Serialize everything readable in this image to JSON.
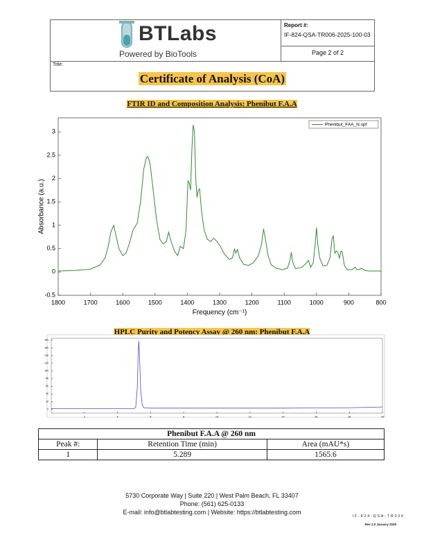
{
  "header": {
    "logo": "BTLabs",
    "tagline": "Powered by BioTools",
    "report_label": "Report #:",
    "report_number": "IF-824-QSA-TR006-2025-100-03",
    "page": "Page 2 of 2",
    "title_label": "Title:",
    "title": "Certificate of Analysis (CoA)"
  },
  "sections": [
    "FTIR ID and Composition Analysis: Phenibut F.A.A",
    "HPLC Purity and Potency Assay @ 260 nm: Phenibut F.A.A"
  ],
  "chart_data": [
    {
      "type": "line",
      "xlabel": "Frequency (cm⁻¹)",
      "ylabel": "Absorbance (a.u.)",
      "x": [
        1800,
        1750,
        1700,
        1670,
        1655,
        1645,
        1637,
        1628,
        1620,
        1612,
        1600,
        1590,
        1580,
        1568,
        1555,
        1545,
        1535,
        1527,
        1522,
        1515,
        1505,
        1495,
        1485,
        1475,
        1465,
        1458,
        1450,
        1440,
        1430,
        1422,
        1412,
        1404,
        1398,
        1394,
        1390,
        1386,
        1382,
        1378,
        1374,
        1370,
        1366,
        1362,
        1356,
        1348,
        1338,
        1328,
        1318,
        1308,
        1298,
        1285,
        1270,
        1260,
        1254,
        1250,
        1245,
        1238,
        1225,
        1210,
        1195,
        1180,
        1170,
        1164,
        1158,
        1150,
        1140,
        1125,
        1105,
        1090,
        1082,
        1078,
        1073,
        1065,
        1045,
        1030,
        1025,
        1018,
        1010,
        1004,
        1000,
        996,
        990,
        980,
        968,
        958,
        952,
        948,
        943,
        938,
        934,
        929,
        924,
        920,
        914,
        905,
        890,
        880,
        875,
        868,
        860,
        850,
        835,
        800
      ],
      "series": [
        {
          "name": "Phenibut_FAA_N.spf",
          "color": "#2e8b2e",
          "values": [
            0.02,
            0.03,
            0.06,
            0.15,
            0.3,
            0.55,
            0.85,
            1.0,
            0.75,
            0.5,
            0.35,
            0.4,
            0.6,
            0.9,
            1.05,
            1.5,
            2.2,
            2.45,
            2.47,
            2.3,
            1.7,
            1.1,
            0.7,
            0.6,
            0.65,
            0.85,
            0.65,
            0.45,
            0.35,
            0.55,
            0.5,
            0.9,
            1.95,
            1.9,
            1.75,
            2.6,
            3.15,
            3.0,
            2.0,
            1.6,
            1.75,
            1.78,
            1.3,
            0.9,
            0.7,
            0.65,
            0.72,
            0.65,
            0.55,
            0.38,
            0.27,
            0.3,
            0.5,
            0.4,
            0.48,
            0.3,
            0.16,
            0.14,
            0.2,
            0.35,
            0.6,
            0.92,
            0.7,
            0.35,
            0.15,
            0.08,
            0.05,
            0.08,
            0.25,
            0.42,
            0.2,
            0.07,
            0.1,
            0.2,
            0.25,
            0.1,
            0.2,
            0.6,
            0.95,
            0.6,
            0.3,
            0.13,
            0.14,
            0.3,
            0.7,
            0.78,
            0.4,
            0.45,
            0.42,
            0.3,
            0.45,
            0.42,
            0.15,
            0.05,
            0.05,
            0.1,
            0.05,
            0.05,
            0.08,
            0.03,
            0.02,
            0.02
          ]
        }
      ],
      "xlim": [
        1800,
        800
      ],
      "ylim": [
        -0.5,
        3.3
      ],
      "xticks": [
        1800,
        1700,
        1600,
        1500,
        1400,
        1300,
        1200,
        1100,
        1000,
        900,
        800
      ],
      "yticks": [
        -0.5,
        0,
        0.5,
        1,
        1.5,
        2,
        2.5,
        3
      ],
      "legend": "upper right"
    },
    {
      "type": "line",
      "x": [
        0,
        2,
        4,
        5,
        5.1,
        5.2,
        5.25,
        5.289,
        5.33,
        5.4,
        5.5,
        5.6,
        6,
        8,
        10,
        12,
        14,
        16,
        18,
        20
      ],
      "series": [
        {
          "color": "#4b4bd0",
          "values": [
            2,
            2,
            2,
            2,
            5,
            60,
            150,
            178,
            140,
            50,
            10,
            4,
            3,
            3,
            3,
            3,
            3,
            3.5,
            4,
            6
          ]
        }
      ],
      "xlim": [
        0,
        20
      ],
      "ylim": [
        -10,
        185
      ],
      "xticks": [
        2,
        4,
        6,
        8,
        10,
        12,
        14,
        16,
        18,
        20
      ],
      "yticks": [
        0,
        20,
        40,
        60,
        80,
        100,
        120,
        140,
        160,
        180
      ]
    }
  ],
  "table": {
    "title": "Phenibut F.A.A @ 260 nm",
    "header": [
      "Peak #:",
      "Retention Time (min)",
      "Area (mAU*s)"
    ],
    "rows": [
      [
        1,
        5.289,
        1565.6
      ]
    ]
  },
  "footer": {
    "lines": [
      "5730 Corporate Way | Suite 220 | West Palm Beach, FL 33407",
      "Phone: (561) 625-0133",
      "E-mail: info@btlabtesting.com | Website: https://btlabtesting.com"
    ],
    "doc_code": "IF-824-QSA-TR006",
    "revision": "Rev 1.0 January 2025"
  }
}
